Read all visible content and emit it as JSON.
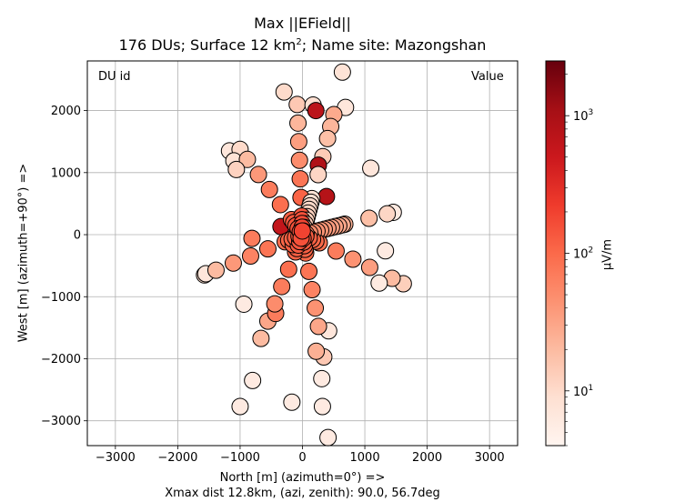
{
  "chart_data": {
    "type": "scatter",
    "title": "Max ||EField||",
    "subtitle_text": "176 DUs; Surface 12 km",
    "subtitle_sup": "2",
    "subtitle_tail": "; Name site: Mazongshan",
    "xlabel": "North [m]  (azimuth=0°) =>",
    "xnote": "Xmax dist 12.8km, (azi, zenith): 90.0, 56.7deg",
    "ylabel": "West [m]  (azimuth=+90°) =>",
    "xlim": [
      -3450,
      3450
    ],
    "ylim": [
      -3400,
      2800
    ],
    "xticks": [
      -3000,
      -2000,
      -1000,
      0,
      1000,
      2000,
      3000
    ],
    "yticks": [
      -3000,
      -2000,
      -1000,
      0,
      1000,
      2000
    ],
    "xtick_labels": [
      "−3000",
      "−2000",
      "−1000",
      "0",
      "1000",
      "2000",
      "3000"
    ],
    "ytick_labels": [
      "−3000",
      "−2000",
      "−1000",
      "0",
      "1000",
      "2000"
    ],
    "grid": true,
    "corner_left": "DU id",
    "corner_right": "Value",
    "colorbar": {
      "label": "μV/m",
      "scale": "log",
      "range": [
        4,
        2500
      ],
      "colormap": "Reds",
      "tick_values": [
        10,
        100,
        1000
      ],
      "tick_bases": [
        "10",
        "10",
        "10"
      ],
      "tick_exps": [
        "1",
        "2",
        "3"
      ]
    },
    "arms": [
      {
        "dir": [
          0.26,
          1.0
        ],
        "points": [
          [
            600,
            8
          ],
          [
            1000,
            11
          ],
          [
            1300,
            14
          ],
          [
            1600,
            18
          ],
          [
            1800,
            22
          ],
          [
            2000,
            28
          ]
        ]
      },
      {
        "dir": [
          0.97,
          0.24
        ],
        "points": [
          [
            700,
            25
          ],
          [
            1100,
            18
          ],
          [
            1400,
            11
          ],
          [
            1500,
            6
          ]
        ]
      },
      {
        "dir": [
          0.9,
          -0.44
        ],
        "points": [
          [
            300,
            90
          ],
          [
            600,
            70
          ],
          [
            900,
            45
          ],
          [
            1200,
            35
          ],
          [
            1600,
            20
          ],
          [
            1800,
            13
          ]
        ]
      },
      {
        "dir": [
          0.17,
          -0.98
        ],
        "points": [
          [
            300,
            100
          ],
          [
            600,
            80
          ],
          [
            900,
            60
          ],
          [
            1200,
            45
          ],
          [
            1500,
            30
          ],
          [
            2000,
            15
          ]
        ]
      },
      {
        "dir": [
          -0.37,
          -0.93
        ],
        "points": [
          [
            300,
            110
          ],
          [
            600,
            90
          ],
          [
            900,
            70
          ],
          [
            1200,
            50
          ],
          [
            1500,
            30
          ],
          [
            1800,
            20
          ]
        ]
      },
      {
        "dir": [
          -0.92,
          -0.38
        ],
        "points": [
          [
            300,
            95
          ],
          [
            600,
            80
          ],
          [
            900,
            60
          ],
          [
            1200,
            40
          ],
          [
            1500,
            20
          ],
          [
            1700,
            10
          ]
        ]
      },
      {
        "dir": [
          -0.59,
          0.81
        ],
        "points": [
          [
            300,
            120
          ],
          [
            600,
            90
          ],
          [
            900,
            70
          ],
          [
            1200,
            40
          ],
          [
            1500,
            20
          ],
          [
            1700,
            10
          ]
        ]
      },
      {
        "dir": [
          -0.04,
          1.0
        ],
        "points": [
          [
            300,
            140
          ],
          [
            600,
            110
          ],
          [
            900,
            80
          ],
          [
            1200,
            50
          ],
          [
            1500,
            35
          ],
          [
            1800,
            22
          ],
          [
            2100,
            15
          ]
        ]
      }
    ],
    "outliers": [
      {
        "x": 640,
        "y": 2620,
        "v": 8
      },
      {
        "x": -295,
        "y": 2300,
        "v": 10
      },
      {
        "x": 170,
        "y": 2090,
        "v": 9
      },
      {
        "x": 690,
        "y": 2050,
        "v": 7
      },
      {
        "x": 215,
        "y": 2000,
        "v": 700
      },
      {
        "x": -1170,
        "y": 1350,
        "v": 7
      },
      {
        "x": -1100,
        "y": 1190,
        "v": 8
      },
      {
        "x": 1095,
        "y": 1070,
        "v": 7
      },
      {
        "x": 255,
        "y": 1120,
        "v": 900
      },
      {
        "x": 385,
        "y": 615,
        "v": 800
      },
      {
        "x": -345,
        "y": 130,
        "v": 600
      },
      {
        "x": -810,
        "y": -60,
        "v": 70
      },
      {
        "x": -150,
        "y": -160,
        "v": 120
      },
      {
        "x": -1550,
        "y": -630,
        "v": 7
      },
      {
        "x": 1330,
        "y": -260,
        "v": 6
      },
      {
        "x": 1230,
        "y": -780,
        "v": 6
      },
      {
        "x": -940,
        "y": -1120,
        "v": 6
      },
      {
        "x": -430,
        "y": -1270,
        "v": 70
      },
      {
        "x": 420,
        "y": -1550,
        "v": 7
      },
      {
        "x": -1060,
        "y": 1050,
        "v": 12
      },
      {
        "x": -1000,
        "y": -2770,
        "v": 6
      },
      {
        "x": -800,
        "y": -2350,
        "v": 6
      },
      {
        "x": -170,
        "y": -2700,
        "v": 6
      },
      {
        "x": 320,
        "y": -2770,
        "v": 6
      },
      {
        "x": 410,
        "y": -3270,
        "v": 6
      },
      {
        "x": 310,
        "y": -2320,
        "v": 6
      },
      {
        "x": 220,
        "y": -1880,
        "v": 25
      }
    ]
  }
}
